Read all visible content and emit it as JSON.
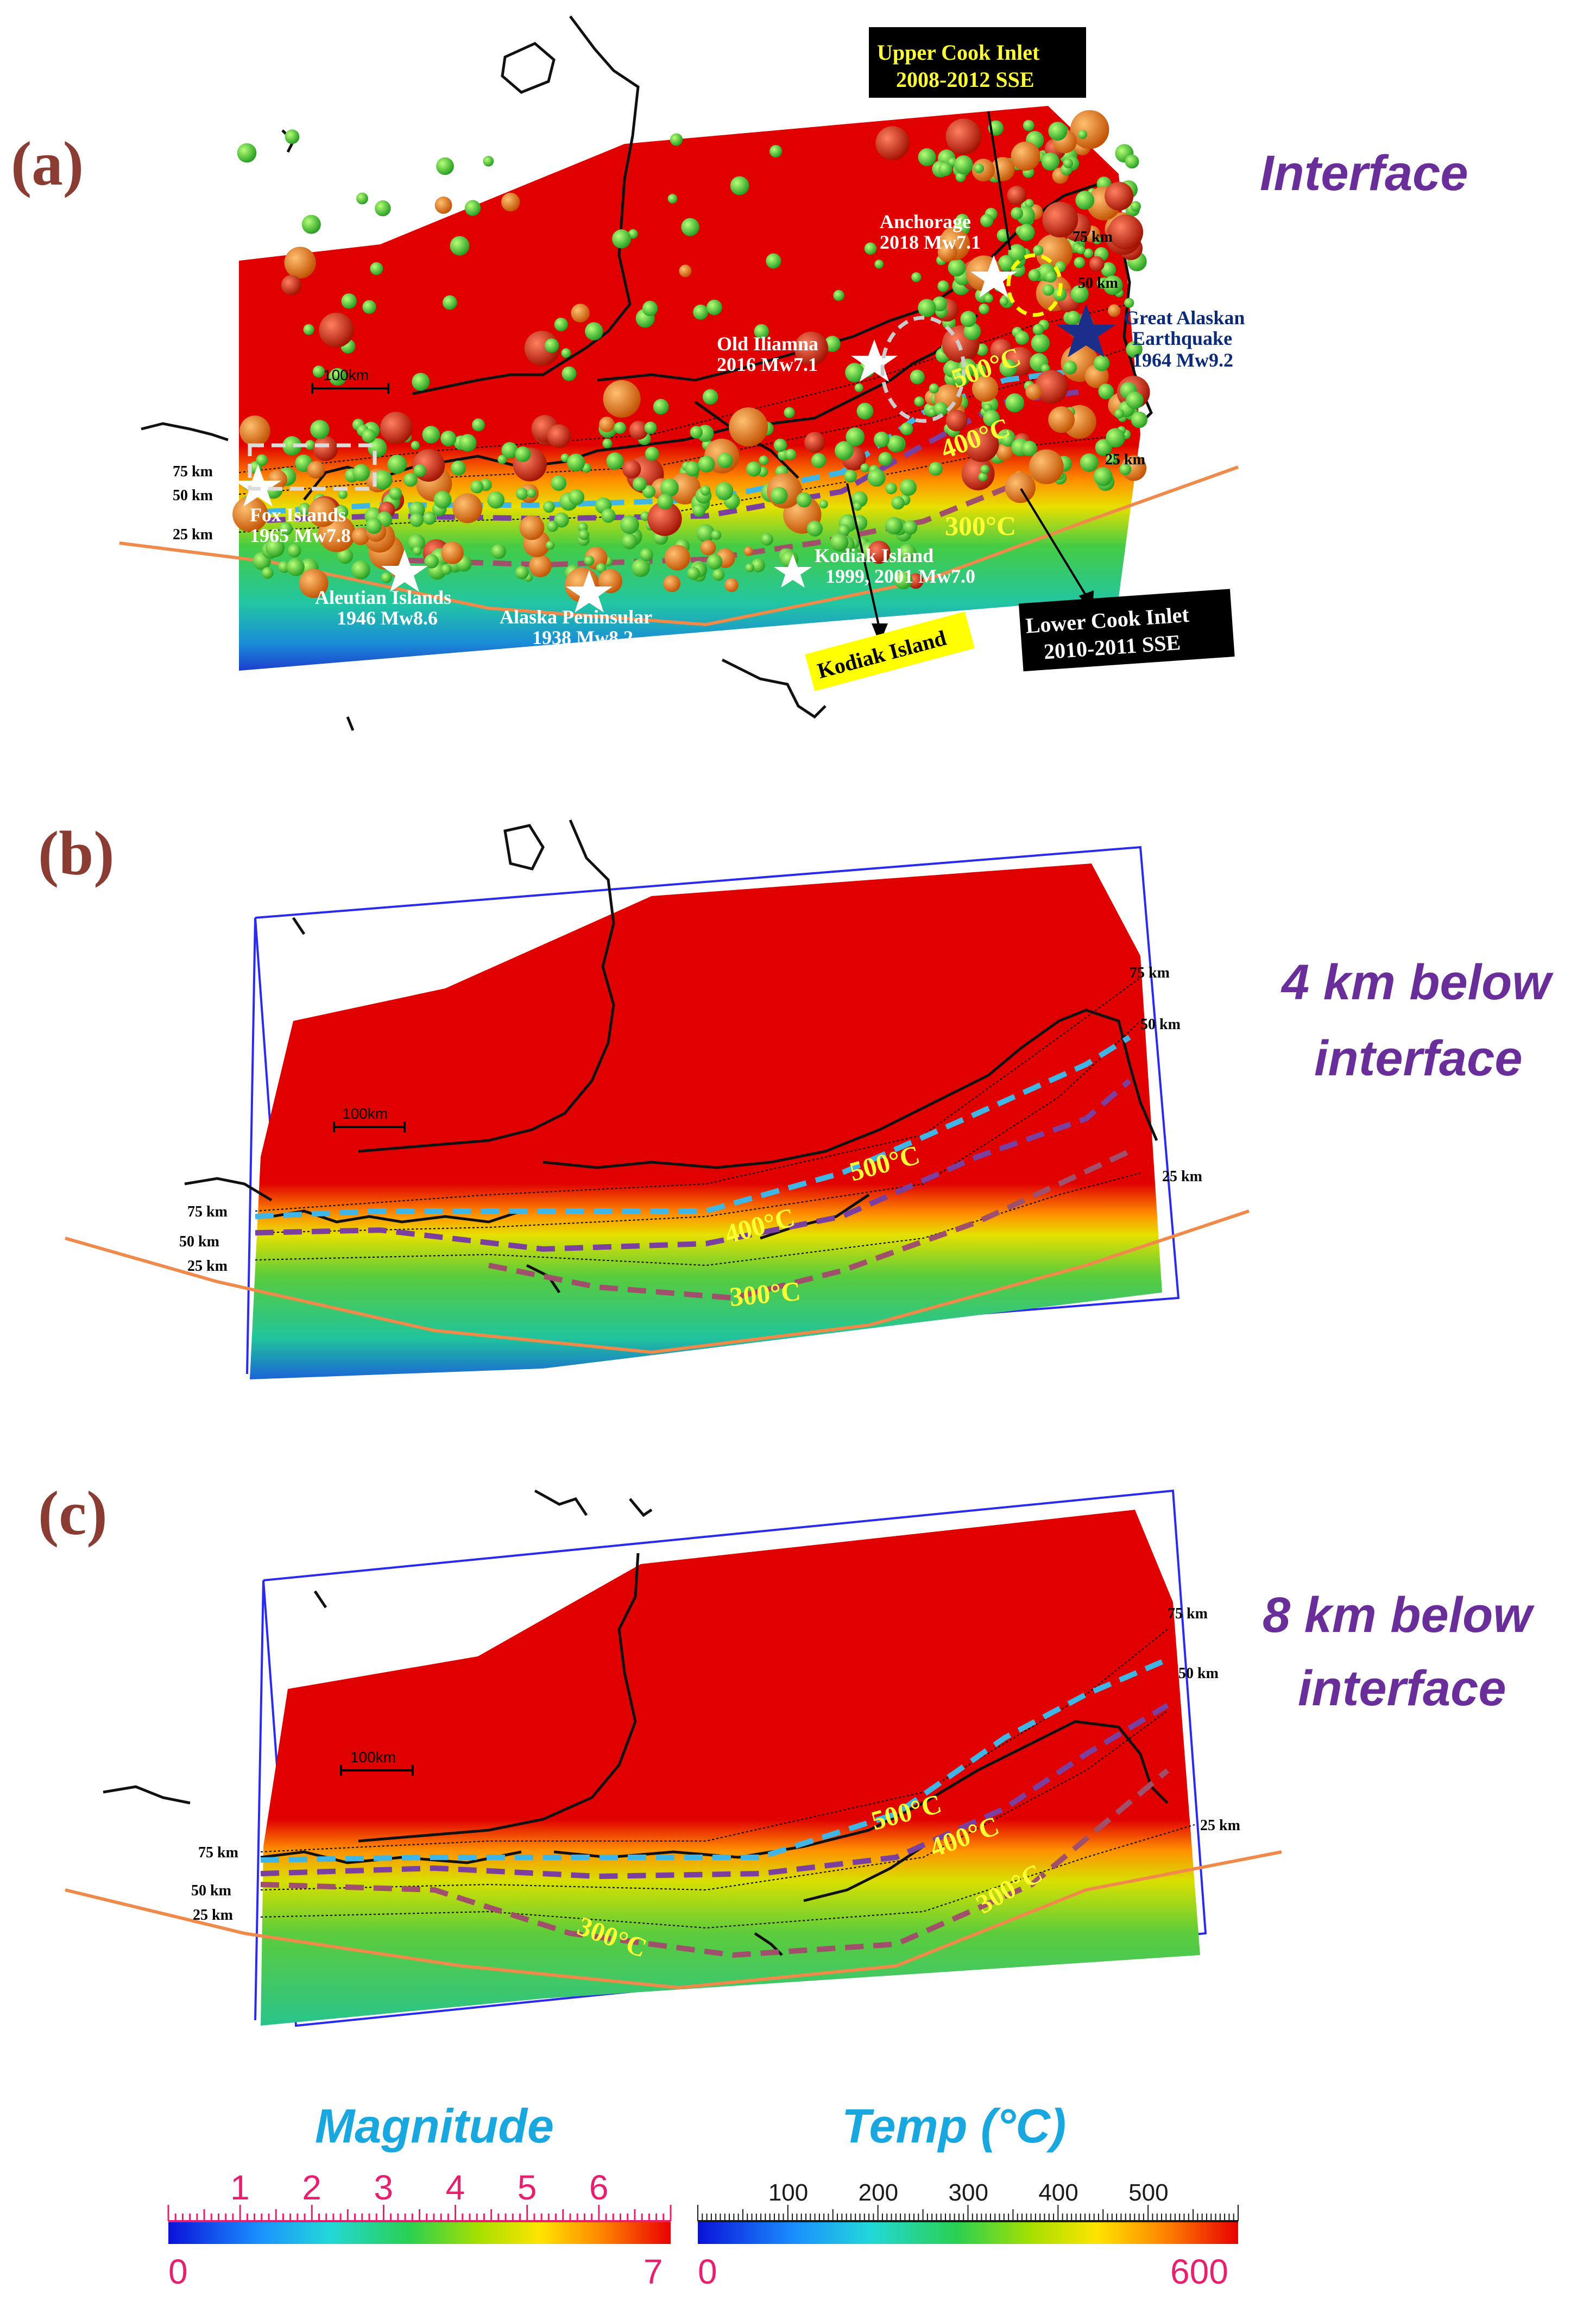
{
  "panels": [
    {
      "label": "(a)",
      "title_lines": [
        "Interface"
      ],
      "depth_labels": [
        "75 km",
        "50 km",
        "25 km"
      ],
      "depth_labels_right": [
        "75 km",
        "50 km",
        "25 km"
      ],
      "isotherms": [
        "500°C",
        "400°C",
        "300°C"
      ],
      "scale_bar": "100km",
      "events": [
        {
          "name": "Anchorage",
          "detail": "2018 Mw7.1"
        },
        {
          "name": "Old Iliamna",
          "detail": "2016 Mw7.1"
        },
        {
          "name": "Great Alaskan Earthquake",
          "detail": "1964 Mw9.2"
        },
        {
          "name": "Fox Islands",
          "detail": "1965 Mw7.8"
        },
        {
          "name": "Aleutian Islands",
          "detail": "1946 Mw8.6"
        },
        {
          "name": "Alaska Peninsular",
          "detail": "1938 Mw8.2"
        },
        {
          "name": "Kodiak Island",
          "detail": "1999, 2001 Mw7.0"
        }
      ],
      "boxes": [
        {
          "line1": "Upper Cook Inlet",
          "line2": "2008-2012 SSE"
        },
        {
          "line1": "Lower Cook Inlet",
          "line2": "2010-2011 SSE"
        }
      ],
      "kodiak_tag": "Kodiak Island"
    },
    {
      "label": "(b)",
      "title_lines": [
        "4 km below",
        "interface"
      ],
      "depth_labels": [
        "75 km",
        "50 km",
        "25 km"
      ],
      "depth_labels_right": [
        "75 km",
        "50 km",
        "25 km"
      ],
      "isotherms": [
        "500°C",
        "400°C",
        "300°C"
      ],
      "scale_bar": "100km"
    },
    {
      "label": "(c)",
      "title_lines": [
        "8 km below",
        "interface"
      ],
      "depth_labels": [
        "75 km",
        "50 km",
        "25 km"
      ],
      "depth_labels_right": [
        "75 km",
        "50 km",
        "25 km"
      ],
      "isotherms": [
        "500°C",
        "400°C",
        "300°C"
      ],
      "scale_bar": "100km"
    }
  ],
  "colorbars": {
    "magnitude": {
      "title": "Magnitude",
      "ticks": [
        "1",
        "2",
        "3",
        "4",
        "5",
        "6"
      ],
      "min": "0",
      "max": "7"
    },
    "temperature": {
      "title": "Temp (°C)",
      "ticks": [
        "100",
        "200",
        "300",
        "400",
        "500"
      ],
      "min": "0",
      "max": "600"
    }
  },
  "colors": {
    "slab_red": "#e00000",
    "isotherm_500": "#3fb6e6",
    "isotherm_400": "#7b3fa0",
    "isotherm_300": "#a0506a",
    "trench": "#f08a4b",
    "panel_label": "#8a3b32",
    "panel_title": "#6a2e9a",
    "colorbar_title": "#19a7e0"
  }
}
